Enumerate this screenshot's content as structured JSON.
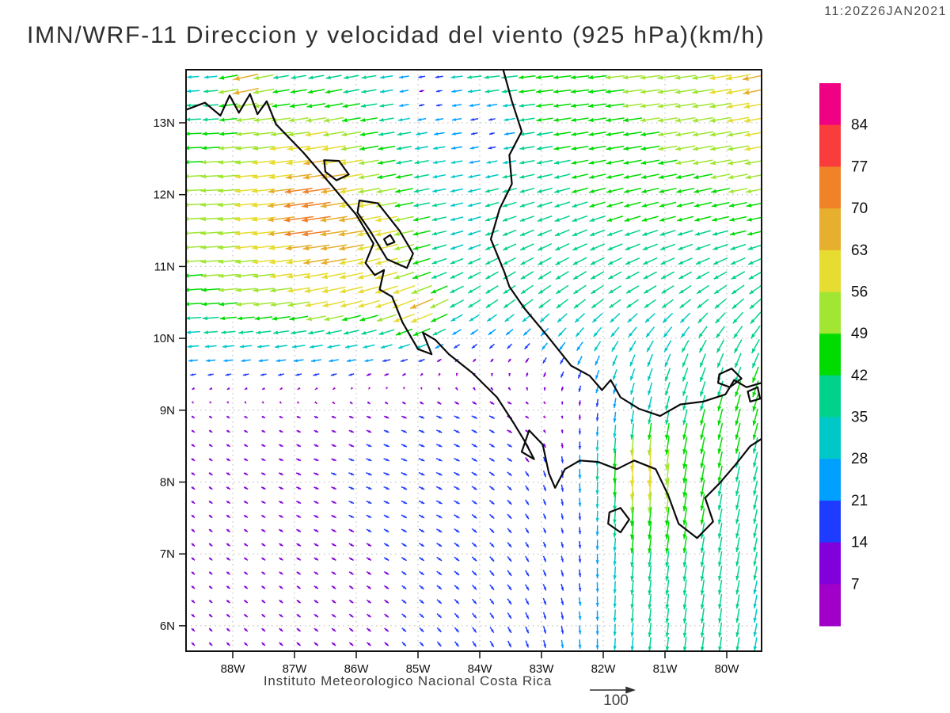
{
  "header": {
    "timestamp": "11:20Z26JAN2021",
    "title": "IMN/WRF-11 Direccion y velocidad del viento (925 hPa)(km/h)"
  },
  "footer": {
    "credit": "Instituto Meteorologico Nacional Costa Rica",
    "reference_vector_label": "100"
  },
  "chart_data": {
    "type": "vector_field",
    "title": "IMN/WRF-11 Direccion y velocidad del viento (925 hPa)(km/h)",
    "units": "km/h",
    "level": "925 hPa",
    "valid_time": "11:20Z26JAN2021",
    "x_axis": {
      "tick_labels": [
        "88W",
        "87W",
        "86W",
        "85W",
        "84W",
        "83W",
        "82W",
        "81W",
        "80W"
      ],
      "tick_lons": [
        -88,
        -87,
        -86,
        -85,
        -84,
        -83,
        -82,
        -81,
        -80
      ]
    },
    "y_axis": {
      "tick_labels": [
        "13N",
        "12N",
        "11N",
        "10N",
        "9N",
        "8N",
        "7N",
        "6N"
      ],
      "tick_lats": [
        13,
        12,
        11,
        10,
        9,
        8,
        7,
        6
      ]
    },
    "domain": {
      "lon_min": -88.76,
      "lon_max": -79.44,
      "lat_min": 5.64,
      "lat_max": 13.74
    },
    "grid": "on-dotted",
    "colorbar": {
      "position": "right",
      "levels": [
        7,
        14,
        21,
        28,
        35,
        42,
        49,
        56,
        63,
        70,
        77,
        84
      ],
      "colors": [
        "#A000C8",
        "#8200DC",
        "#1E3CFF",
        "#00A0FF",
        "#00C8C8",
        "#00D28C",
        "#00DC00",
        "#A0E632",
        "#E6DC32",
        "#E6AF2D",
        "#F08228",
        "#FA3C3C",
        "#F00082"
      ]
    },
    "reference_vector": {
      "value": 100,
      "label": "100"
    },
    "wind_grid": {
      "lons": [
        -88.5,
        -87.5,
        -86.5,
        -85.5,
        -84.5,
        -83.5,
        -82.5,
        -81.5,
        -80.5,
        -79.5
      ],
      "lats": [
        13.6,
        12.5,
        11.5,
        10.5,
        9.7,
        9.0,
        8.2,
        7.4,
        6.5,
        5.7
      ],
      "u": [
        [
          -30,
          -36,
          -40,
          -36,
          -38,
          -42,
          -46,
          -50,
          -54,
          -58
        ],
        [
          -48,
          -58,
          -64,
          -44,
          -30,
          -38,
          -42,
          -46,
          -50,
          -55
        ],
        [
          -52,
          -60,
          -70,
          -58,
          -32,
          -34,
          -38,
          -40,
          -40,
          -42
        ],
        [
          -46,
          -52,
          -58,
          -54,
          -33,
          -30,
          -30,
          -30,
          -28,
          -30
        ],
        [
          -24,
          -25,
          -26,
          -20,
          -8,
          -6,
          -10,
          -12,
          -14,
          -16
        ],
        [
          7,
          8,
          10,
          12,
          14,
          14,
          4,
          -6,
          -10,
          -12
        ],
        [
          9,
          11,
          13,
          15,
          15,
          12,
          2,
          -5,
          -8,
          -9
        ],
        [
          8,
          10,
          12,
          13,
          14,
          10,
          2,
          -5,
          -7,
          -8
        ],
        [
          8,
          9,
          10,
          11,
          12,
          10,
          4,
          -4,
          -6,
          -7
        ],
        [
          8,
          9,
          10,
          10,
          10,
          8,
          2,
          -3,
          -5,
          -6
        ]
      ],
      "v": [
        [
          -2,
          -5,
          -8,
          -5,
          -4,
          -5,
          -5,
          -6,
          -8,
          -10
        ],
        [
          -2,
          -6,
          -10,
          -8,
          -5,
          -6,
          -8,
          -8,
          -9,
          -10
        ],
        [
          -3,
          -6,
          -10,
          -12,
          -8,
          -14,
          -15,
          -13,
          -11,
          -9
        ],
        [
          -3,
          -6,
          -12,
          -18,
          -18,
          -22,
          -23,
          -20,
          -22,
          -26
        ],
        [
          -2,
          -3,
          -4,
          -4,
          -6,
          -9,
          -22,
          -30,
          -34,
          -38
        ],
        [
          -5,
          -4,
          -4,
          -5,
          -6,
          -8,
          -15,
          -30,
          -40,
          -44
        ],
        [
          -6,
          -5,
          -5,
          -6,
          -7,
          -10,
          -24,
          -52,
          -44,
          -38
        ],
        [
          -7,
          -6,
          -6,
          -7,
          -8,
          -12,
          -14,
          -45,
          -42,
          -36
        ],
        [
          -7,
          -7,
          -7,
          -8,
          -10,
          -14,
          -18,
          -38,
          -40,
          -34
        ],
        [
          -8,
          -8,
          -8,
          -9,
          -12,
          -16,
          -22,
          -34,
          -38,
          -34
        ]
      ],
      "anomalies": [
        {
          "lon": -86.95,
          "lat": 11.78,
          "du": -10,
          "dv": -2,
          "r": 0.3
        },
        {
          "lon": -87.8,
          "lat": 13.55,
          "du": -30,
          "dv": -10,
          "r": 0.25
        },
        {
          "lon": -84.85,
          "lat": 13.4,
          "du": 26,
          "dv": 2,
          "r": 0.35
        },
        {
          "lon": -83.85,
          "lat": 12.9,
          "du": 24,
          "dv": 2,
          "r": 0.3
        },
        {
          "lon": -81.35,
          "lat": 8.1,
          "du": 2,
          "dv": -14,
          "r": 0.35
        },
        {
          "lon": -82.8,
          "lat": 8.9,
          "du": -4,
          "dv": 8,
          "r": 0.45
        },
        {
          "lon": -79.55,
          "lat": 13.65,
          "du": -8,
          "dv": -4,
          "r": 0.25
        },
        {
          "lon": -84.95,
          "lat": 10.3,
          "du": -20,
          "dv": -8,
          "r": 0.3
        }
      ]
    },
    "coastline": {
      "paths": [
        [
          [
            -88.76,
            13.18
          ],
          [
            -88.45,
            13.28
          ],
          [
            -88.2,
            13.1
          ],
          [
            -88.05,
            13.38
          ],
          [
            -87.9,
            13.14
          ],
          [
            -87.72,
            13.4
          ],
          [
            -87.6,
            13.12
          ],
          [
            -87.45,
            13.3
          ],
          [
            -87.3,
            12.98
          ],
          [
            -86.85,
            12.58
          ],
          [
            -86.45,
            12.18
          ],
          [
            -86.0,
            11.72
          ],
          [
            -85.72,
            11.32
          ],
          [
            -85.85,
            11.05
          ],
          [
            -85.7,
            10.88
          ],
          [
            -85.55,
            10.95
          ],
          [
            -85.62,
            10.68
          ],
          [
            -85.42,
            10.58
          ],
          [
            -85.25,
            10.22
          ],
          [
            -85.0,
            9.85
          ],
          [
            -84.78,
            9.78
          ],
          [
            -84.92,
            10.08
          ],
          [
            -84.72,
            9.98
          ],
          [
            -84.5,
            9.78
          ],
          [
            -84.12,
            9.52
          ],
          [
            -83.72,
            9.18
          ],
          [
            -83.45,
            8.82
          ],
          [
            -83.28,
            8.58
          ],
          [
            -83.12,
            8.32
          ],
          [
            -83.32,
            8.42
          ],
          [
            -83.2,
            8.72
          ],
          [
            -82.98,
            8.52
          ],
          [
            -82.88,
            8.12
          ],
          [
            -82.78,
            7.92
          ],
          [
            -82.62,
            8.18
          ],
          [
            -82.38,
            8.3
          ],
          [
            -82.08,
            8.28
          ],
          [
            -81.78,
            8.18
          ],
          [
            -81.5,
            8.3
          ],
          [
            -81.15,
            8.18
          ],
          [
            -80.95,
            7.82
          ],
          [
            -80.78,
            7.42
          ],
          [
            -80.48,
            7.22
          ],
          [
            -80.22,
            7.45
          ],
          [
            -80.35,
            7.78
          ],
          [
            -80.12,
            7.98
          ],
          [
            -79.85,
            8.25
          ],
          [
            -79.62,
            8.5
          ],
          [
            -79.44,
            8.6
          ]
        ],
        [
          [
            -83.62,
            13.74
          ],
          [
            -83.48,
            13.3
          ],
          [
            -83.32,
            12.88
          ],
          [
            -83.52,
            12.55
          ],
          [
            -83.48,
            12.15
          ],
          [
            -83.68,
            11.8
          ],
          [
            -83.82,
            11.38
          ],
          [
            -83.6,
            10.92
          ],
          [
            -83.52,
            10.72
          ],
          [
            -83.28,
            10.42
          ],
          [
            -82.92,
            10.05
          ],
          [
            -82.52,
            9.62
          ],
          [
            -82.22,
            9.48
          ],
          [
            -82.02,
            9.28
          ],
          [
            -81.88,
            9.42
          ],
          [
            -81.72,
            9.18
          ],
          [
            -81.42,
            9.02
          ],
          [
            -81.08,
            8.92
          ],
          [
            -80.75,
            9.08
          ],
          [
            -80.38,
            9.12
          ],
          [
            -80.02,
            9.22
          ],
          [
            -79.88,
            9.42
          ],
          [
            -79.68,
            9.32
          ],
          [
            -79.44,
            9.38
          ]
        ]
      ],
      "closed_shapes": [
        [
          [
            -85.95,
            11.92
          ],
          [
            -85.65,
            11.88
          ],
          [
            -85.3,
            11.5
          ],
          [
            -85.08,
            11.18
          ],
          [
            -85.18,
            10.98
          ],
          [
            -85.5,
            11.1
          ],
          [
            -85.78,
            11.5
          ],
          [
            -85.98,
            11.75
          ]
        ],
        [
          [
            -86.52,
            12.48
          ],
          [
            -86.28,
            12.47
          ],
          [
            -86.12,
            12.28
          ],
          [
            -86.32,
            12.2
          ],
          [
            -86.5,
            12.32
          ]
        ],
        [
          [
            -85.55,
            11.38
          ],
          [
            -85.45,
            11.44
          ],
          [
            -85.38,
            11.34
          ],
          [
            -85.5,
            11.3
          ]
        ],
        [
          [
            -81.9,
            7.58
          ],
          [
            -81.72,
            7.64
          ],
          [
            -81.58,
            7.48
          ],
          [
            -81.72,
            7.3
          ],
          [
            -81.92,
            7.42
          ]
        ],
        [
          [
            -80.12,
            9.5
          ],
          [
            -79.92,
            9.58
          ],
          [
            -79.76,
            9.44
          ],
          [
            -79.95,
            9.32
          ],
          [
            -80.14,
            9.38
          ]
        ],
        [
          [
            -79.66,
            9.26
          ],
          [
            -79.5,
            9.32
          ],
          [
            -79.46,
            9.16
          ],
          [
            -79.62,
            9.12
          ]
        ]
      ]
    }
  }
}
